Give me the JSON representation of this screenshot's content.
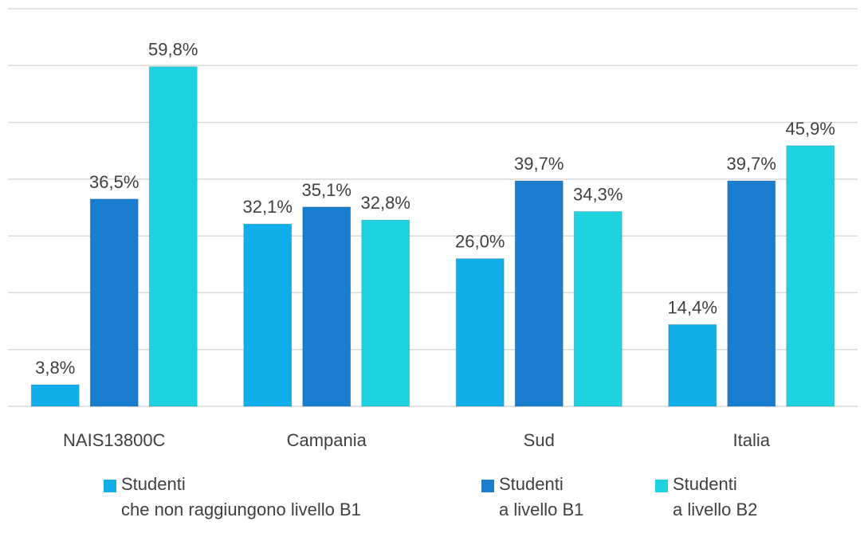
{
  "chart_data": {
    "type": "bar",
    "categories": [
      "NAIS13800C",
      "Campania",
      "Sud",
      "Italia"
    ],
    "series": [
      {
        "name": "Studenti\nche non raggiungono livello B1",
        "color": "#12aeea",
        "values": [
          3.8,
          32.1,
          26.0,
          14.4
        ],
        "value_labels": [
          "3,8%",
          "32,1%",
          "26,0%",
          "14,4%"
        ]
      },
      {
        "name": "Studenti\na livello B1",
        "color": "#1a7dcd",
        "values": [
          36.5,
          35.1,
          39.7,
          39.7
        ],
        "value_labels": [
          "36,5%",
          "35,1%",
          "39,7%",
          "39,7%"
        ]
      },
      {
        "name": "Studenti\na livello B2",
        "color": "#1ed2e0",
        "values": [
          59.8,
          32.8,
          34.3,
          45.9
        ],
        "value_labels": [
          "59,8%",
          "32,8%",
          "34,3%",
          "45,9%"
        ]
      }
    ],
    "ylim": [
      0,
      70
    ],
    "yticks": [
      0,
      10,
      20,
      30,
      40,
      50,
      60,
      70
    ],
    "grid": true,
    "legend": "bottom"
  }
}
